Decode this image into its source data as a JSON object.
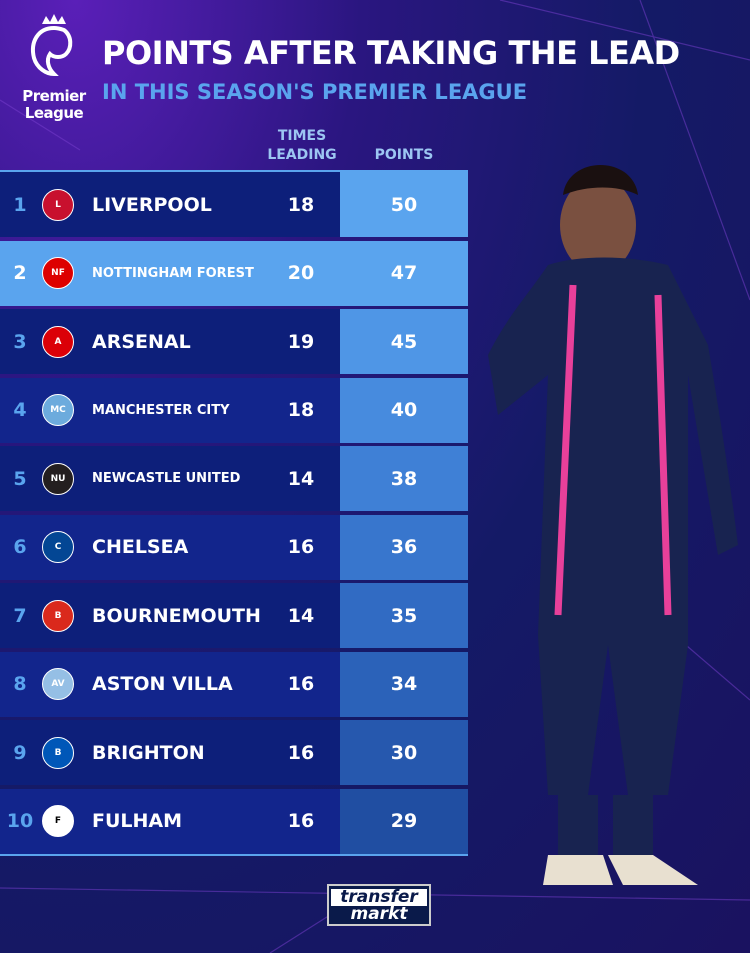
{
  "header": {
    "logo_text": "Premier League",
    "title": "POINTS AFTER TAKING THE LEAD",
    "subtitle": "IN THIS SEASON'S PREMIER LEAGUE"
  },
  "columns": {
    "times_leading": "TIMES LEADING",
    "points": "POINTS"
  },
  "colors": {
    "accent": "#5aa4ee",
    "row_dark": "#0d1f7a",
    "title": "#ffffff"
  },
  "chart_data": {
    "type": "table",
    "title": "POINTS AFTER TAKING THE LEAD",
    "subtitle": "IN THIS SEASON'S PREMIER LEAGUE",
    "columns": [
      "",
      "",
      "TIMES LEADING",
      "POINTS"
    ],
    "rows": [
      {
        "rank": "1",
        "team": "LIVERPOOL",
        "times_leading": 18,
        "points": 50,
        "crest": "liverpool-crest",
        "crest_color": "#c8102e"
      },
      {
        "rank": "2",
        "team": "NOTTINGHAM FOREST",
        "times_leading": 20,
        "points": 47,
        "crest": "nottingham-forest-crest",
        "crest_color": "#dd0000",
        "highlight": true
      },
      {
        "rank": "3",
        "team": "ARSENAL",
        "times_leading": 19,
        "points": 45,
        "crest": "arsenal-crest",
        "crest_color": "#db0007"
      },
      {
        "rank": "4",
        "team": "MANCHESTER CITY",
        "times_leading": 18,
        "points": 40,
        "crest": "manchester-city-crest",
        "crest_color": "#6cabdd"
      },
      {
        "rank": "5",
        "team": "NEWCASTLE UNITED",
        "times_leading": 14,
        "points": 38,
        "crest": "newcastle-crest",
        "crest_color": "#241f20"
      },
      {
        "rank": "6",
        "team": "CHELSEA",
        "times_leading": 16,
        "points": 36,
        "crest": "chelsea-crest",
        "crest_color": "#034694"
      },
      {
        "rank": "7",
        "team": "BOURNEMOUTH",
        "times_leading": 14,
        "points": 35,
        "crest": "bournemouth-crest",
        "crest_color": "#da291c"
      },
      {
        "rank": "8",
        "team": "ASTON VILLA",
        "times_leading": 16,
        "points": 34,
        "crest": "aston-villa-crest",
        "crest_color": "#95bfe5"
      },
      {
        "rank": "9",
        "team": "BRIGHTON",
        "times_leading": 16,
        "points": 30,
        "crest": "brighton-crest",
        "crest_color": "#0057b8"
      },
      {
        "rank": "10",
        "team": "FULHAM",
        "times_leading": 16,
        "points": 29,
        "crest": "fulham-crest",
        "crest_color": "#ffffff"
      }
    ]
  },
  "footer": {
    "brand_line1": "transfer",
    "brand_line2": "markt"
  }
}
